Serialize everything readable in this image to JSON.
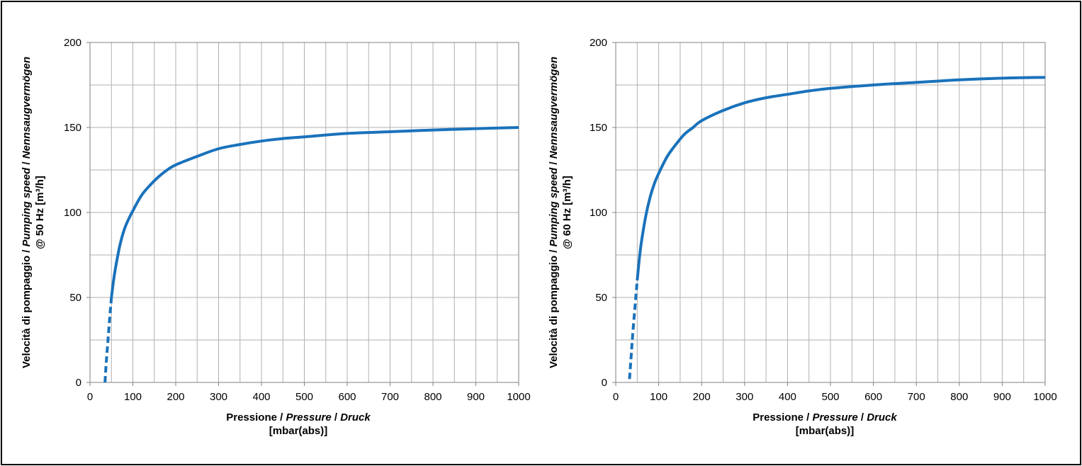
{
  "colors": {
    "curve": "#1a72bb",
    "grid": "#b0b0b0",
    "frame": "#000000"
  },
  "chart_data": [
    {
      "type": "line",
      "title": "",
      "xlabel": {
        "line1": [
          "Pressione / ",
          "Pressure",
          " / ",
          "Druck"
        ],
        "line2": "[mbar(abs)]"
      },
      "ylabel": {
        "line1": [
          "Velocità di pompaggio / ",
          "Pumping speed",
          " / ",
          "Nennsaugvermögen"
        ],
        "line2": "@ 50 Hz [m³/h]"
      },
      "xlim": [
        0,
        1000
      ],
      "ylim": [
        0,
        200
      ],
      "x_ticks": [
        0,
        100,
        200,
        300,
        400,
        500,
        600,
        700,
        800,
        900,
        1000
      ],
      "y_ticks": [
        0,
        50,
        100,
        150,
        200
      ],
      "grid": true,
      "series": [
        {
          "style": "solid",
          "x": [
            50,
            55,
            60,
            70,
            80,
            90,
            100,
            120,
            140,
            160,
            180,
            200,
            250,
            300,
            350,
            400,
            450,
            500,
            600,
            700,
            800,
            900,
            1000
          ],
          "y": [
            50,
            60,
            68,
            81,
            90,
            96,
            101,
            110,
            116,
            121,
            125,
            128,
            133,
            137.5,
            140,
            142,
            143.5,
            144.5,
            146.5,
            147.5,
            148.5,
            149.3,
            150
          ]
        },
        {
          "style": "dashed",
          "x": [
            35,
            38,
            42,
            46,
            50
          ],
          "y": [
            0,
            12,
            25,
            38,
            50
          ]
        }
      ]
    },
    {
      "type": "line",
      "title": "",
      "xlabel": {
        "line1": [
          "Pressione / ",
          "Pressure",
          " / ",
          "Druck"
        ],
        "line2": "[mbar(abs)]"
      },
      "ylabel": {
        "line1": [
          "Velocità di pompaggio / ",
          "Pumping speed",
          " / ",
          "Nennsaugvermögen"
        ],
        "line2": "@ 60 Hz [m³/h]"
      },
      "xlim": [
        0,
        1000
      ],
      "ylim": [
        0,
        200
      ],
      "x_ticks": [
        0,
        100,
        200,
        300,
        400,
        500,
        600,
        700,
        800,
        900,
        1000
      ],
      "y_ticks": [
        0,
        50,
        100,
        150,
        200
      ],
      "grid": true,
      "series": [
        {
          "style": "solid",
          "x": [
            50,
            55,
            60,
            70,
            80,
            90,
            100,
            120,
            140,
            160,
            180,
            200,
            250,
            300,
            350,
            400,
            450,
            500,
            600,
            700,
            800,
            900,
            1000
          ],
          "y": [
            60,
            73,
            83,
            98,
            109,
            117,
            123,
            133,
            140,
            146,
            150,
            154,
            160,
            164.5,
            167.5,
            169.5,
            171.5,
            173,
            175,
            176.5,
            178,
            179,
            179.5
          ]
        },
        {
          "style": "dashed",
          "x": [
            32,
            36,
            40,
            45,
            50
          ],
          "y": [
            2,
            16,
            30,
            45,
            60
          ]
        }
      ]
    }
  ]
}
